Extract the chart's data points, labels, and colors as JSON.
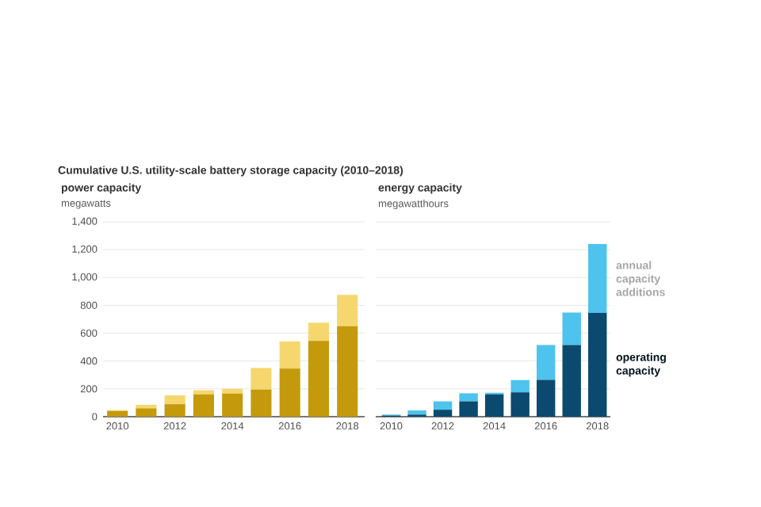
{
  "chart_data": [
    {
      "type": "bar",
      "title": "Cumulative U.S. utility-scale battery storage capacity (2010–2018)",
      "subtitle": "power capacity",
      "ylabel": "megawatts",
      "stacked": true,
      "grid": "y",
      "x": [
        2010,
        2011,
        2012,
        2013,
        2014,
        2015,
        2016,
        2017,
        2018
      ],
      "xlim": [
        2009.5,
        2018.6
      ],
      "xticks": [
        2010,
        2012,
        2014,
        2016,
        2018
      ],
      "ylim": [
        0,
        1400
      ],
      "yticks": [
        0,
        200,
        400,
        600,
        800,
        {
          "value": 1000,
          "label": "1,000"
        },
        {
          "value": 1200,
          "label": "1,200"
        },
        {
          "value": 1400,
          "label": "1,400"
        }
      ],
      "series": [
        {
          "color": "#c49a0c",
          "values": [
            40,
            60,
            90,
            160,
            165,
            195,
            345,
            545,
            650
          ]
        },
        {
          "color": "#f5d76e",
          "values": [
            8,
            25,
            63,
            30,
            35,
            155,
            195,
            130,
            225
          ]
        }
      ]
    },
    {
      "type": "bar",
      "subtitle": "energy capacity",
      "ylabel": "megawatthours",
      "stacked": true,
      "grid": "y",
      "legend": "right",
      "tick_labels": "x",
      "x": [
        2010,
        2011,
        2012,
        2013,
        2014,
        2015,
        2016,
        2017,
        2018
      ],
      "xlim": [
        2009.4,
        2018.5
      ],
      "xticks": [
        2010,
        2012,
        2014,
        2016,
        2018
      ],
      "ylim": [
        0,
        1400
      ],
      "yticks": [
        0,
        200,
        400,
        600,
        800,
        1000,
        1200,
        1400
      ],
      "series": [
        {
          "name": "operating capacity",
          "color": "#0b4a6e",
          "values": [
            8,
            15,
            50,
            110,
            160,
            175,
            265,
            515,
            745
          ]
        },
        {
          "name": "annual capacity additions",
          "color": "#4ec3ee",
          "values": [
            7,
            30,
            60,
            58,
            12,
            88,
            250,
            233,
            495
          ]
        }
      ]
    }
  ]
}
